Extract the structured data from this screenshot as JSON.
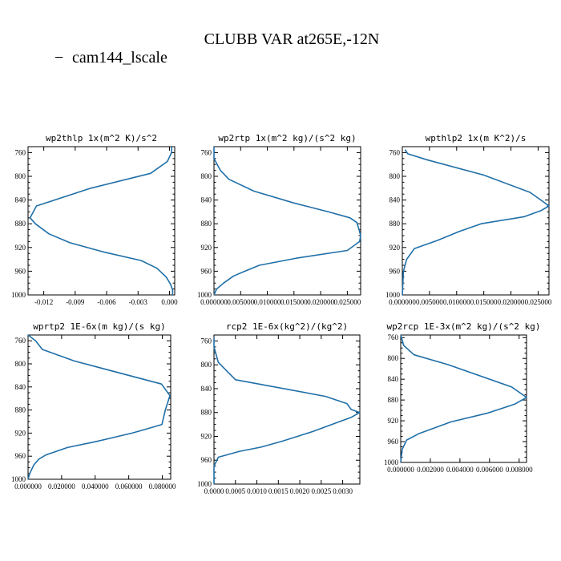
{
  "title": "CLUBB VAR at265E,-12N",
  "legend": {
    "series_name": "cam144_lscale",
    "marker": "−"
  },
  "colors": {
    "series": "#1f6fa8",
    "axis": "#000000"
  },
  "chart_data": [
    {
      "type": "line",
      "title": "wp2thlp  1x(m^2 K)/s^2",
      "xlim": [
        -0.0135,
        0.0005
      ],
      "ylim": [
        1000,
        750
      ],
      "xticks": [
        -0.012,
        -0.009,
        -0.006,
        -0.003,
        0.0
      ],
      "xtick_labels": [
        "-0.012",
        "-0.009",
        "-0.006",
        "-0.003",
        "0.000"
      ],
      "yticks": [
        760,
        800,
        840,
        880,
        920,
        960,
        1000
      ],
      "series": [
        {
          "name": "cam144_lscale",
          "x": [
            0.0002,
            0.0002,
            -0.0002,
            -0.0018,
            -0.0075,
            -0.0127,
            -0.0133,
            -0.0128,
            -0.0115,
            -0.0095,
            -0.0062,
            -0.0027,
            -0.0012,
            -0.0003,
            0.0001,
            0.0003,
            0.0003
          ],
          "y": [
            750,
            760,
            775,
            795,
            820,
            850,
            870,
            880,
            897,
            912,
            928,
            942,
            955,
            970,
            982,
            992,
            1000
          ]
        }
      ]
    },
    {
      "type": "line",
      "title": "wp2rtp  1x(m^2 kg)/(s^2 kg)",
      "xlim": [
        0.0,
        0.0275
      ],
      "ylim": [
        1000,
        750
      ],
      "xticks": [
        0.0,
        0.005,
        0.01,
        0.015,
        0.02,
        0.025
      ],
      "xtick_labels": [
        "0.000000",
        "0.005000",
        "0.010000",
        "0.015000",
        "0.020000",
        "0.025000"
      ],
      "yticks": [
        760,
        800,
        840,
        880,
        920,
        960,
        1000
      ],
      "series": [
        {
          "name": "cam144_lscale",
          "x": [
            0.0,
            0.0,
            0.0012,
            0.0028,
            0.0075,
            0.015,
            0.0215,
            0.0255,
            0.0268,
            0.0272,
            0.0275,
            0.0273,
            0.025,
            0.0155,
            0.0085,
            0.0058,
            0.0037,
            0.0018,
            0.0005,
            0.0
          ],
          "y": [
            750,
            770,
            790,
            805,
            825,
            845,
            860,
            870,
            878,
            890,
            900,
            910,
            925,
            938,
            950,
            960,
            968,
            980,
            990,
            1000
          ]
        }
      ]
    },
    {
      "type": "line",
      "title": "wpthlp2  1x(m K^2)/s",
      "xlim": [
        0.0,
        0.027
      ],
      "ylim": [
        1000,
        750
      ],
      "xticks": [
        0.0,
        0.005,
        0.01,
        0.015,
        0.02,
        0.025
      ],
      "xtick_labels": [
        "0.000000",
        "0.005000",
        "0.010000",
        "0.015000",
        "0.020000",
        "0.025000"
      ],
      "yticks": [
        760,
        800,
        840,
        880,
        920,
        960,
        1000
      ],
      "series": [
        {
          "name": "cam144_lscale",
          "x": [
            0.0005,
            0.001,
            0.0045,
            0.015,
            0.0235,
            0.0252,
            0.027,
            0.0255,
            0.0225,
            0.0145,
            0.0105,
            0.0065,
            0.0022,
            0.0008,
            0.0002,
            0.0
          ],
          "y": [
            755,
            762,
            772,
            798,
            827,
            838,
            850,
            858,
            868,
            880,
            893,
            908,
            922,
            940,
            960,
            1000
          ]
        }
      ]
    },
    {
      "type": "line",
      "title": "wprtp2  1E-6x(m kg)/(s kg)",
      "xlim": [
        0.0,
        0.085
      ],
      "ylim": [
        1000,
        750
      ],
      "xticks": [
        0.0,
        0.02,
        0.04,
        0.06,
        0.08
      ],
      "xtick_labels": [
        "0.000000",
        "0.020000",
        "0.040000",
        "0.060000",
        "0.080000"
      ],
      "yticks": [
        760,
        800,
        840,
        880,
        920,
        960,
        1000
      ],
      "series": [
        {
          "name": "cam144_lscale",
          "x": [
            0.0,
            0.0045,
            0.0085,
            0.0275,
            0.0795,
            0.0845,
            0.0818,
            0.0798,
            0.0705,
            0.062,
            0.04,
            0.0235,
            0.0105,
            0.0065,
            0.0035,
            0.001,
            0.0
          ],
          "y": [
            750,
            760,
            775,
            795,
            835,
            855,
            880,
            905,
            913,
            920,
            935,
            945,
            958,
            965,
            975,
            990,
            1000
          ]
        }
      ]
    },
    {
      "type": "line",
      "title": "rcp2  1E-6x(kg^2)/(kg^2)",
      "xlim": [
        0.0,
        0.0034
      ],
      "ylim": [
        1000,
        750
      ],
      "xticks": [
        0.0,
        0.0005,
        0.001,
        0.0015,
        0.002,
        0.0025,
        0.003
      ],
      "xtick_labels": [
        "0.0000",
        "0.0005",
        "0.0010",
        "0.0015",
        "0.0020",
        "0.0025",
        "0.0030"
      ],
      "yticks": [
        760,
        800,
        840,
        880,
        920,
        960,
        1000
      ],
      "series": [
        {
          "name": "cam144_lscale",
          "x": [
            0.0,
            0.0,
            0.0001,
            0.0005,
            0.0026,
            0.0031,
            0.0032,
            0.0034,
            0.0032,
            0.0029,
            0.0023,
            0.0016,
            0.0011,
            0.0006,
            0.0001,
            0.0,
            0.0
          ],
          "y": [
            755,
            770,
            796,
            825,
            853,
            865,
            875,
            880,
            888,
            896,
            912,
            928,
            938,
            945,
            955,
            970,
            1000
          ]
        }
      ]
    },
    {
      "type": "line",
      "title": "wp2rcp  1E-3x(m^2 kg)/(s^2 kg)",
      "xlim": [
        0.0,
        0.0085
      ],
      "ylim": [
        1000,
        755
      ],
      "xticks": [
        0.0,
        0.002,
        0.004,
        0.006,
        0.008
      ],
      "xtick_labels": [
        "0.000000",
        "0.002000",
        "0.004000",
        "0.006000",
        "0.008000"
      ],
      "yticks": [
        760,
        800,
        840,
        880,
        920,
        960,
        1000
      ],
      "series": [
        {
          "name": "cam144_lscale",
          "x": [
            0.0,
            0.0002,
            0.0009,
            0.0032,
            0.0075,
            0.0085,
            0.0077,
            0.0059,
            0.0034,
            0.0012,
            0.0004,
            0.0001,
            0.0
          ],
          "y": [
            755,
            775,
            793,
            812,
            855,
            875,
            888,
            905,
            922,
            945,
            957,
            975,
            1000
          ]
        }
      ]
    }
  ]
}
